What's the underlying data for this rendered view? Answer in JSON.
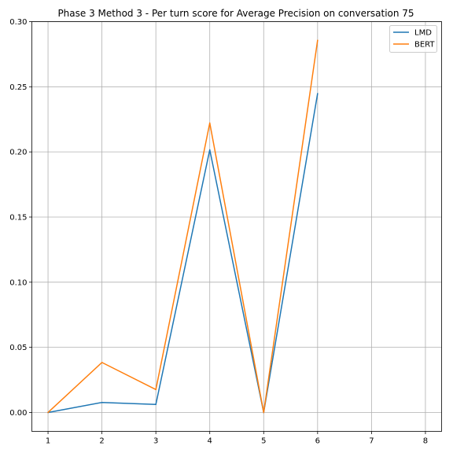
{
  "chart_data": {
    "type": "line",
    "title": "Phase 3 Method 3 - Per turn score for Average Precision on conversation 75",
    "xlabel": "",
    "ylabel": "",
    "xlim": [
      0.7,
      8.3
    ],
    "ylim": [
      -0.0145,
      0.3
    ],
    "xticks": [
      1,
      2,
      3,
      4,
      5,
      6,
      7,
      8
    ],
    "yticks": [
      0.0,
      0.05,
      0.1,
      0.15,
      0.2,
      0.25,
      0.3
    ],
    "ytick_labels": [
      "0.00",
      "0.05",
      "0.10",
      "0.15",
      "0.20",
      "0.25",
      "0.30"
    ],
    "grid": true,
    "legend": "top-right",
    "series": [
      {
        "name": "LMD",
        "color": "#1f77b4",
        "x": [
          1,
          2,
          3,
          4,
          5,
          6
        ],
        "values": [
          0.0,
          0.0077,
          0.0062,
          0.2016,
          0.0,
          0.2448
        ]
      },
      {
        "name": "BERT",
        "color": "#ff7f0e",
        "x": [
          1,
          2,
          3,
          4,
          5,
          6
        ],
        "values": [
          0.0,
          0.0384,
          0.0176,
          0.2222,
          0.0,
          0.2857
        ]
      }
    ]
  }
}
